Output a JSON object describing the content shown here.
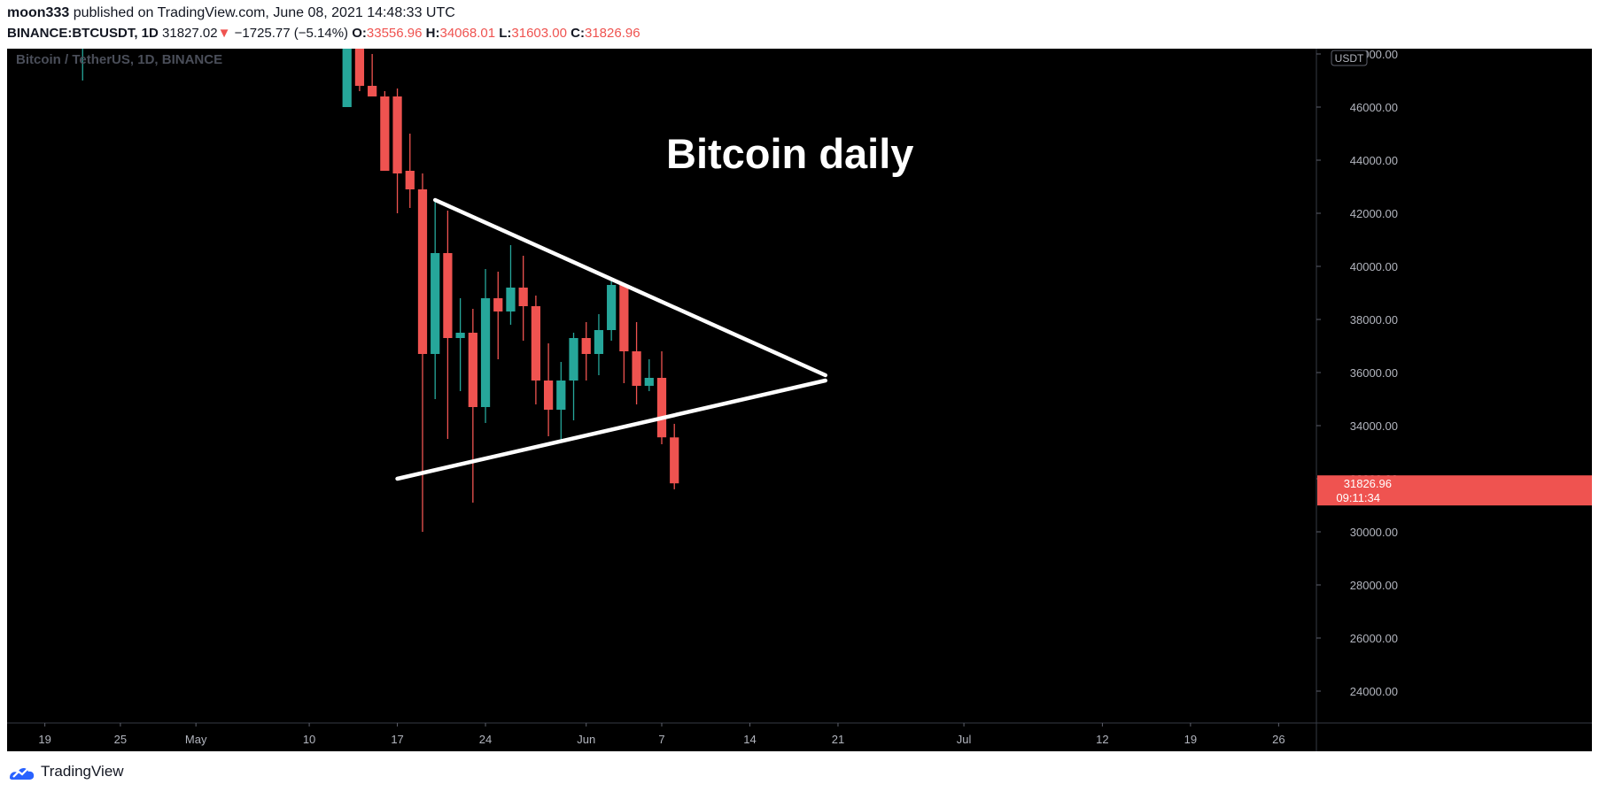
{
  "header": {
    "author": "moon333",
    "published_text": " published on TradingView.com, June 08, 2021 14:48:33 UTC",
    "symbol": "BINANCE:BTCUSDT, 1D",
    "price": "31827.02",
    "change_arrow": "▼",
    "change": "−1725.77 (−5.14%)",
    "open_label": "O:",
    "open_value": "33556.96",
    "high_label": "H:",
    "high_value": "34068.01",
    "low_label": "L:",
    "low_value": "31603.00",
    "close_label": "C:",
    "close_value": "31826.96"
  },
  "footer": {
    "brand": "TradingView",
    "logo_icon": "tradingview-logo-icon"
  },
  "chart_data": {
    "type": "candlestick",
    "series_label": "Bitcoin / TetherUS, 1D, BINANCE",
    "annotation": "Bitcoin daily",
    "currency_badge": "USDT",
    "last_price_label": "31826.96",
    "countdown_label": "09:11:34",
    "y_range": [
      22800,
      48200
    ],
    "y_ticks": [
      "48000.00",
      "46000.00",
      "44000.00",
      "42000.00",
      "40000.00",
      "38000.00",
      "36000.00",
      "34000.00",
      "32000.00",
      "30000.00",
      "28000.00",
      "26000.00",
      "24000.00"
    ],
    "x_range_days": [
      "2021-04-16",
      "2021-07-29"
    ],
    "x_ticks": [
      {
        "date": "2021-04-19",
        "label": "19"
      },
      {
        "date": "2021-04-25",
        "label": "25"
      },
      {
        "date": "2021-05-01",
        "label": "May"
      },
      {
        "date": "2021-05-10",
        "label": "10"
      },
      {
        "date": "2021-05-17",
        "label": "17"
      },
      {
        "date": "2021-05-24",
        "label": "24"
      },
      {
        "date": "2021-06-01",
        "label": "Jun"
      },
      {
        "date": "2021-06-07",
        "label": "7"
      },
      {
        "date": "2021-06-14",
        "label": "14"
      },
      {
        "date": "2021-06-21",
        "label": "21"
      },
      {
        "date": "2021-07-01",
        "label": "Jul"
      },
      {
        "date": "2021-07-12",
        "label": "12"
      },
      {
        "date": "2021-07-19",
        "label": "19"
      },
      {
        "date": "2021-07-26",
        "label": "26"
      }
    ],
    "colors": {
      "up": "#26a69a",
      "down": "#ef5350",
      "background": "#000000",
      "axis_text": "#b2b5be",
      "trendline": "#ffffff"
    },
    "candles": [
      {
        "date": "2021-04-22",
        "o": 48500,
        "h": 49000,
        "l": 47000,
        "c": 48500
      },
      {
        "date": "2021-05-13",
        "o": 46000,
        "h": 48500,
        "l": 46000,
        "c": 48500
      },
      {
        "date": "2021-05-14",
        "o": 49000,
        "h": 49500,
        "l": 46600,
        "c": 46800
      },
      {
        "date": "2021-05-15",
        "o": 46800,
        "h": 48000,
        "l": 46400,
        "c": 46400
      },
      {
        "date": "2021-05-16",
        "o": 46400,
        "h": 46600,
        "l": 43800,
        "c": 43600
      },
      {
        "date": "2021-05-17",
        "o": 46400,
        "h": 46700,
        "l": 42000,
        "c": 43500
      },
      {
        "date": "2021-05-18",
        "o": 43600,
        "h": 45000,
        "l": 42200,
        "c": 42900
      },
      {
        "date": "2021-05-19",
        "o": 42900,
        "h": 43500,
        "l": 30000,
        "c": 36700
      },
      {
        "date": "2021-05-20",
        "o": 36700,
        "h": 42500,
        "l": 35000,
        "c": 40500
      },
      {
        "date": "2021-05-21",
        "o": 40500,
        "h": 42100,
        "l": 33500,
        "c": 37300
      },
      {
        "date": "2021-05-22",
        "o": 37300,
        "h": 38800,
        "l": 35300,
        "c": 37500
      },
      {
        "date": "2021-05-23",
        "o": 37500,
        "h": 38400,
        "l": 31100,
        "c": 34700
      },
      {
        "date": "2021-05-24",
        "o": 34700,
        "h": 39900,
        "l": 34100,
        "c": 38800
      },
      {
        "date": "2021-05-25",
        "o": 38800,
        "h": 39800,
        "l": 36500,
        "c": 38300
      },
      {
        "date": "2021-05-26",
        "o": 38300,
        "h": 40800,
        "l": 37800,
        "c": 39200
      },
      {
        "date": "2021-05-27",
        "o": 39200,
        "h": 40400,
        "l": 37200,
        "c": 38500
      },
      {
        "date": "2021-05-28",
        "o": 38500,
        "h": 38900,
        "l": 34800,
        "c": 35700
      },
      {
        "date": "2021-05-29",
        "o": 35700,
        "h": 37100,
        "l": 33600,
        "c": 34600
      },
      {
        "date": "2021-05-30",
        "o": 34600,
        "h": 36400,
        "l": 33400,
        "c": 35700
      },
      {
        "date": "2021-05-31",
        "o": 35700,
        "h": 37500,
        "l": 34200,
        "c": 37300
      },
      {
        "date": "2021-06-01",
        "o": 37300,
        "h": 37900,
        "l": 35700,
        "c": 36700
      },
      {
        "date": "2021-06-02",
        "o": 36700,
        "h": 38200,
        "l": 35900,
        "c": 37600
      },
      {
        "date": "2021-06-03",
        "o": 37600,
        "h": 39500,
        "l": 37200,
        "c": 39300
      },
      {
        "date": "2021-06-04",
        "o": 39300,
        "h": 39300,
        "l": 35600,
        "c": 36800
      },
      {
        "date": "2021-06-05",
        "o": 36800,
        "h": 37900,
        "l": 34800,
        "c": 35500
      },
      {
        "date": "2021-06-06",
        "o": 35500,
        "h": 36500,
        "l": 35300,
        "c": 35800
      },
      {
        "date": "2021-06-07",
        "o": 35800,
        "h": 36800,
        "l": 33300,
        "c": 33560
      },
      {
        "date": "2021-06-08",
        "o": 33557,
        "h": 34068,
        "l": 31603,
        "c": 31827
      }
    ],
    "trendlines": [
      {
        "name": "triangle-upper-trendline",
        "start": {
          "date": "2021-05-20",
          "y": 42500
        },
        "end": {
          "date": "2021-06-20",
          "y": 35900
        }
      },
      {
        "name": "triangle-lower-trendline",
        "start": {
          "date": "2021-05-17",
          "y": 32000
        },
        "end": {
          "date": "2021-06-20",
          "y": 35700
        }
      }
    ]
  }
}
